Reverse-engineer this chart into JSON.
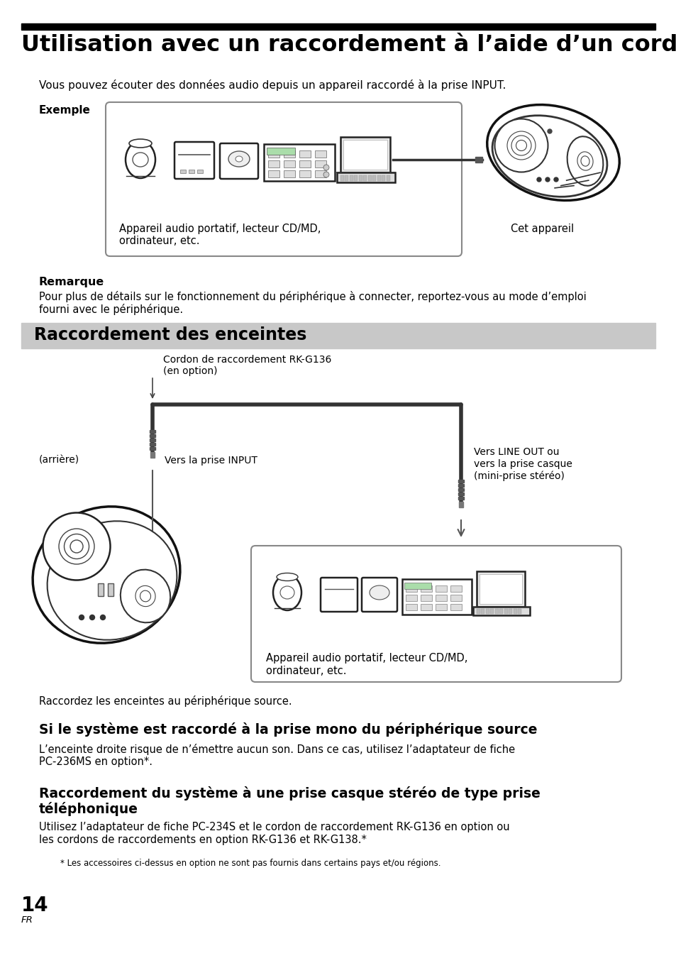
{
  "title": "Utilisation avec un raccordement à l’aide d’un cordon",
  "subtitle": "Vous pouvez écouter des données audio depuis un appareil raccordé à la prise INPUT.",
  "exemple_label": "Exemple",
  "exemple_box_text1": "Appareil audio portatif, lecteur CD/MD,",
  "exemple_box_text2": "ordinateur, etc.",
  "cet_appareil": "Cet appareil",
  "remarque_title": "Remarque",
  "remarque_text1": "Pour plus de détails sur le fonctionnement du périphérique à connecter, reportez-vous au mode d’emploi",
  "remarque_text2": "fourni avec le périphérique.",
  "section_title": "Raccordement des enceintes",
  "cordon_label1": "Cordon de raccordement RK-G136",
  "cordon_label2": "(en option)",
  "arriere_label": "(arrière)",
  "vers_input": "Vers la prise INPUT",
  "vers_line_out1": "Vers LINE OUT ou",
  "vers_line_out2": "vers la prise casque",
  "vers_line_out3": "(mini-prise stéréo)",
  "box2_text1": "Appareil audio portatif, lecteur CD/MD,",
  "box2_text2": "ordinateur, etc.",
  "raccordez_text": "Raccordez les enceintes au périphérique source.",
  "section2_title": "Si le système est raccordé à la prise mono du périphérique source",
  "section2_text1": "L’enceinte droite risque de n’émettre aucun son. Dans ce cas, utilisez l’adaptateur de fiche",
  "section2_text2": "PC-236MS en option*.",
  "section3_title1": "Raccordement du système à une prise casque stéréo de type prise",
  "section3_title2": "téléphonique",
  "section3_text1": "Utilisez l’adaptateur de fiche PC-234S et le cordon de raccordement RK-G136 en option ou",
  "section3_text2": "les cordons de raccordements en option RK-G136 et RK-G138.*",
  "footnote": "* Les accessoires ci-dessus en option ne sont pas fournis dans certains pays et/ou régions.",
  "page_num": "14",
  "page_lang": "FR",
  "bg_color": "#ffffff",
  "title_bar_color": "#000000",
  "section_bg_color": "#c8c8c8",
  "text_color": "#000000"
}
